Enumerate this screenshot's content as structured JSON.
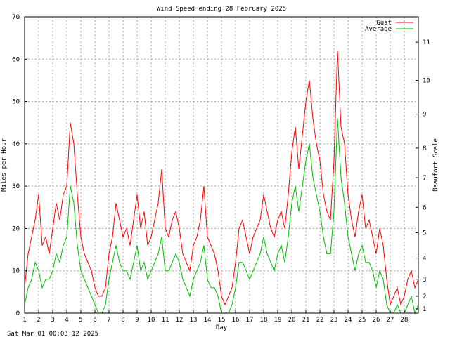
{
  "footer": {
    "timestamp": "Sat Mar 01 00:03:12 2025"
  },
  "chart_data": {
    "type": "line",
    "title": "Wind Speed ending 28 February 2025",
    "xlabel": "Day",
    "ylabel": "Miles per Hour",
    "y2label": "Beaufort Scale",
    "xlim": [
      1,
      29
    ],
    "ylim": [
      0,
      70
    ],
    "grid": true,
    "legend_position": "top-right",
    "x_ticks": [
      1,
      2,
      3,
      4,
      5,
      6,
      7,
      8,
      9,
      10,
      11,
      12,
      13,
      14,
      15,
      16,
      17,
      18,
      19,
      20,
      21,
      22,
      23,
      24,
      25,
      26,
      27,
      28
    ],
    "x_tick_labels": [
      "1",
      "2",
      "3",
      "4",
      "5",
      "6",
      "7",
      "8",
      "9",
      "10",
      "11",
      "12",
      "13",
      "14",
      "15",
      "16",
      "17",
      "18",
      "19",
      "20",
      "21",
      "22",
      "23",
      "24",
      "25",
      "26",
      "27",
      "28"
    ],
    "y_ticks": [
      0,
      10,
      20,
      30,
      40,
      50,
      60,
      70
    ],
    "y_tick_labels": [
      "0",
      "10",
      "20",
      "30",
      "40",
      "50",
      "60",
      "70"
    ],
    "beaufort_ticks": [
      {
        "label": "1",
        "mph": 1
      },
      {
        "label": "2",
        "mph": 4
      },
      {
        "label": "3",
        "mph": 8
      },
      {
        "label": "4",
        "mph": 13
      },
      {
        "label": "5",
        "mph": 19
      },
      {
        "label": "6",
        "mph": 25
      },
      {
        "label": "7",
        "mph": 32
      },
      {
        "label": "8",
        "mph": 39
      },
      {
        "label": "9",
        "mph": 47
      },
      {
        "label": "10",
        "mph": 55
      },
      {
        "label": "11",
        "mph": 64
      }
    ],
    "series": [
      {
        "name": "Gust",
        "color": "#ff0000",
        "x": [
          1,
          1.25,
          1.5,
          1.75,
          2,
          2.25,
          2.5,
          2.75,
          3,
          3.25,
          3.5,
          3.75,
          4,
          4.25,
          4.5,
          4.75,
          5,
          5.25,
          5.5,
          5.75,
          6,
          6.25,
          6.5,
          6.75,
          7,
          7.25,
          7.5,
          7.75,
          8,
          8.25,
          8.5,
          8.75,
          9,
          9.25,
          9.5,
          9.75,
          10,
          10.25,
          10.5,
          10.75,
          11,
          11.25,
          11.5,
          11.75,
          12,
          12.25,
          12.5,
          12.75,
          13,
          13.25,
          13.5,
          13.75,
          14,
          14.25,
          14.5,
          14.75,
          15,
          15.25,
          15.5,
          15.75,
          16,
          16.25,
          16.5,
          16.75,
          17,
          17.25,
          17.5,
          17.75,
          18,
          18.25,
          18.5,
          18.75,
          19,
          19.25,
          19.5,
          19.75,
          20,
          20.25,
          20.5,
          20.75,
          21,
          21.25,
          21.5,
          21.75,
          22,
          22.25,
          22.5,
          22.75,
          23,
          23.25,
          23.5,
          23.75,
          24,
          24.25,
          24.5,
          24.75,
          25,
          25.25,
          25.5,
          25.75,
          26,
          26.25,
          26.5,
          26.75,
          27,
          27.25,
          27.5,
          27.75,
          28,
          28.25,
          28.5,
          28.75,
          29
        ],
        "y": [
          6,
          14,
          18,
          22,
          28,
          16,
          18,
          14,
          20,
          26,
          22,
          28,
          30,
          45,
          40,
          28,
          18,
          14,
          12,
          10,
          6,
          4,
          4,
          6,
          14,
          18,
          26,
          22,
          18,
          20,
          16,
          22,
          28,
          20,
          24,
          16,
          18,
          22,
          26,
          34,
          20,
          18,
          22,
          24,
          20,
          14,
          12,
          10,
          16,
          18,
          22,
          30,
          18,
          16,
          14,
          10,
          4,
          2,
          4,
          6,
          12,
          20,
          22,
          18,
          14,
          18,
          20,
          22,
          28,
          24,
          20,
          18,
          22,
          24,
          20,
          28,
          38,
          44,
          34,
          42,
          50,
          55,
          46,
          40,
          36,
          28,
          24,
          22,
          36,
          62,
          44,
          40,
          28,
          22,
          18,
          24,
          28,
          20,
          22,
          18,
          14,
          20,
          16,
          8,
          2,
          4,
          6,
          2,
          4,
          8,
          10,
          6,
          8
        ],
        "values_note": ""
      },
      {
        "name": "Average",
        "color": "#00c000",
        "x": [
          1,
          1.25,
          1.5,
          1.75,
          2,
          2.25,
          2.5,
          2.75,
          3,
          3.25,
          3.5,
          3.75,
          4,
          4.25,
          4.5,
          4.75,
          5,
          5.25,
          5.5,
          5.75,
          6,
          6.25,
          6.5,
          6.75,
          7,
          7.25,
          7.5,
          7.75,
          8,
          8.25,
          8.5,
          8.75,
          9,
          9.25,
          9.5,
          9.75,
          10,
          10.25,
          10.5,
          10.75,
          11,
          11.25,
          11.5,
          11.75,
          12,
          12.25,
          12.5,
          12.75,
          13,
          13.25,
          13.5,
          13.75,
          14,
          14.25,
          14.5,
          14.75,
          15,
          15.25,
          15.5,
          15.75,
          16,
          16.25,
          16.5,
          16.75,
          17,
          17.25,
          17.5,
          17.75,
          18,
          18.25,
          18.5,
          18.75,
          19,
          19.25,
          19.5,
          19.75,
          20,
          20.25,
          20.5,
          20.75,
          21,
          21.25,
          21.5,
          21.75,
          22,
          22.25,
          22.5,
          22.75,
          23,
          23.25,
          23.5,
          23.75,
          24,
          24.25,
          24.5,
          24.75,
          25,
          25.25,
          25.5,
          25.75,
          26,
          26.25,
          26.5,
          26.75,
          27,
          27.25,
          27.5,
          27.75,
          28,
          28.25,
          28.5,
          28.75,
          29
        ],
        "y": [
          2,
          6,
          8,
          12,
          10,
          6,
          8,
          8,
          10,
          14,
          12,
          16,
          18,
          30,
          26,
          16,
          10,
          8,
          6,
          4,
          2,
          0,
          0,
          2,
          8,
          12,
          16,
          12,
          10,
          10,
          8,
          12,
          16,
          10,
          12,
          8,
          10,
          12,
          14,
          18,
          10,
          10,
          12,
          14,
          12,
          8,
          6,
          4,
          8,
          10,
          12,
          16,
          8,
          6,
          6,
          4,
          0,
          0,
          0,
          2,
          6,
          12,
          12,
          10,
          8,
          10,
          12,
          14,
          18,
          14,
          12,
          10,
          14,
          16,
          12,
          18,
          26,
          30,
          24,
          30,
          36,
          40,
          32,
          28,
          24,
          18,
          14,
          14,
          24,
          46,
          32,
          26,
          18,
          14,
          10,
          14,
          16,
          12,
          12,
          10,
          6,
          10,
          8,
          2,
          0,
          0,
          2,
          0,
          0,
          2,
          4,
          0,
          2
        ],
        "values_note": ""
      }
    ]
  }
}
